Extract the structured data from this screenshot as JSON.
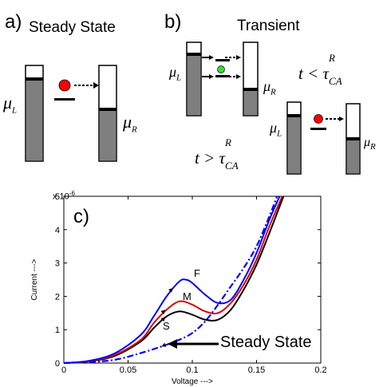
{
  "panel_a": {
    "letter": "a)",
    "title": "Steady State",
    "mu_left": "μ",
    "mu_left_sub": "L",
    "mu_right": "μ",
    "mu_right_sub": "R"
  },
  "panel_b": {
    "letter": "b)",
    "title": "Transient",
    "mu_left": "μ",
    "mu_left_sub": "L",
    "mu_right": "μ",
    "mu_right_sub": "R",
    "ineq_less": "t < τ",
    "ineq_greater": "t > τ",
    "tau_sup": "R",
    "tau_sub": "CA",
    "mu_left2": "μ",
    "mu_left2_sub": "L",
    "mu_right2": "μ",
    "mu_right2_sub": "R"
  },
  "panel_c": {
    "letter": "c)",
    "exponent_label": "x 10",
    "exponent_power": "-6",
    "curve_labels": {
      "fast": "F",
      "medium": "M",
      "slow": "S"
    },
    "annotation": "Steady State"
  },
  "colors": {
    "bar_fill": "#7f7f7f",
    "dot_red": "#ff0000",
    "dot_green": "#33dd33",
    "fast": "#0000ff",
    "medium": "#dd0000",
    "slow": "#000000",
    "steady": "#0000ff"
  },
  "chart_data": {
    "type": "line",
    "xlabel": "Voltage --->",
    "ylabel": "Current --->",
    "xlim": [
      0,
      0.2
    ],
    "ylim": [
      0,
      5e-06
    ],
    "xticks": [
      "0",
      "0.05",
      "0.1",
      "0.15",
      "0.2"
    ],
    "yticks": [
      "0",
      "1",
      "2",
      "3",
      "4",
      "5"
    ],
    "series": [
      {
        "name": "F",
        "style": "solid",
        "color": "#0000ff",
        "x": [
          0,
          0.02,
          0.04,
          0.06,
          0.07,
          0.08,
          0.09,
          0.095,
          0.1,
          0.11,
          0.12,
          0.13,
          0.14,
          0.15,
          0.16,
          0.168
        ],
        "y": [
          0,
          7e-08,
          3e-07,
          8.5e-07,
          1.4e-06,
          2e-06,
          2.45e-06,
          2.5e-06,
          2.4e-06,
          2.05e-06,
          1.8e-06,
          1.9e-06,
          2.5e-06,
          3.3e-06,
          4.3e-06,
          5e-06
        ]
      },
      {
        "name": "M",
        "style": "solid",
        "color": "#dd0000",
        "x": [
          0,
          0.02,
          0.04,
          0.06,
          0.07,
          0.08,
          0.09,
          0.1,
          0.11,
          0.12,
          0.13,
          0.14,
          0.15,
          0.16,
          0.17
        ],
        "y": [
          0,
          6e-08,
          2.5e-07,
          7e-07,
          1.2e-06,
          1.6e-06,
          1.85e-06,
          1.75e-06,
          1.55e-06,
          1.5e-06,
          1.8e-06,
          2.35e-06,
          3.1e-06,
          4.1e-06,
          5e-06
        ]
      },
      {
        "name": "S",
        "style": "solid",
        "color": "#000000",
        "x": [
          0,
          0.02,
          0.04,
          0.06,
          0.07,
          0.08,
          0.09,
          0.1,
          0.11,
          0.12,
          0.13,
          0.14,
          0.15,
          0.16,
          0.171
        ],
        "y": [
          0,
          5e-08,
          2.2e-07,
          6.5e-07,
          1.05e-06,
          1.4e-06,
          1.55e-06,
          1.45e-06,
          1.3e-06,
          1.3e-06,
          1.6e-06,
          2.2e-06,
          2.95e-06,
          3.9e-06,
          5e-06
        ]
      },
      {
        "name": "Steady State",
        "style": "dashdot",
        "color": "#0000ff",
        "x": [
          0,
          0.02,
          0.04,
          0.06,
          0.08,
          0.09,
          0.1,
          0.11,
          0.12,
          0.13,
          0.14,
          0.15,
          0.16,
          0.166
        ],
        "y": [
          0,
          3e-08,
          1e-07,
          3e-07,
          5.5e-07,
          7e-07,
          9e-07,
          1.25e-06,
          1.75e-06,
          2.3e-06,
          2.85e-06,
          3.5e-06,
          4.4e-06,
          5e-06
        ]
      }
    ]
  }
}
